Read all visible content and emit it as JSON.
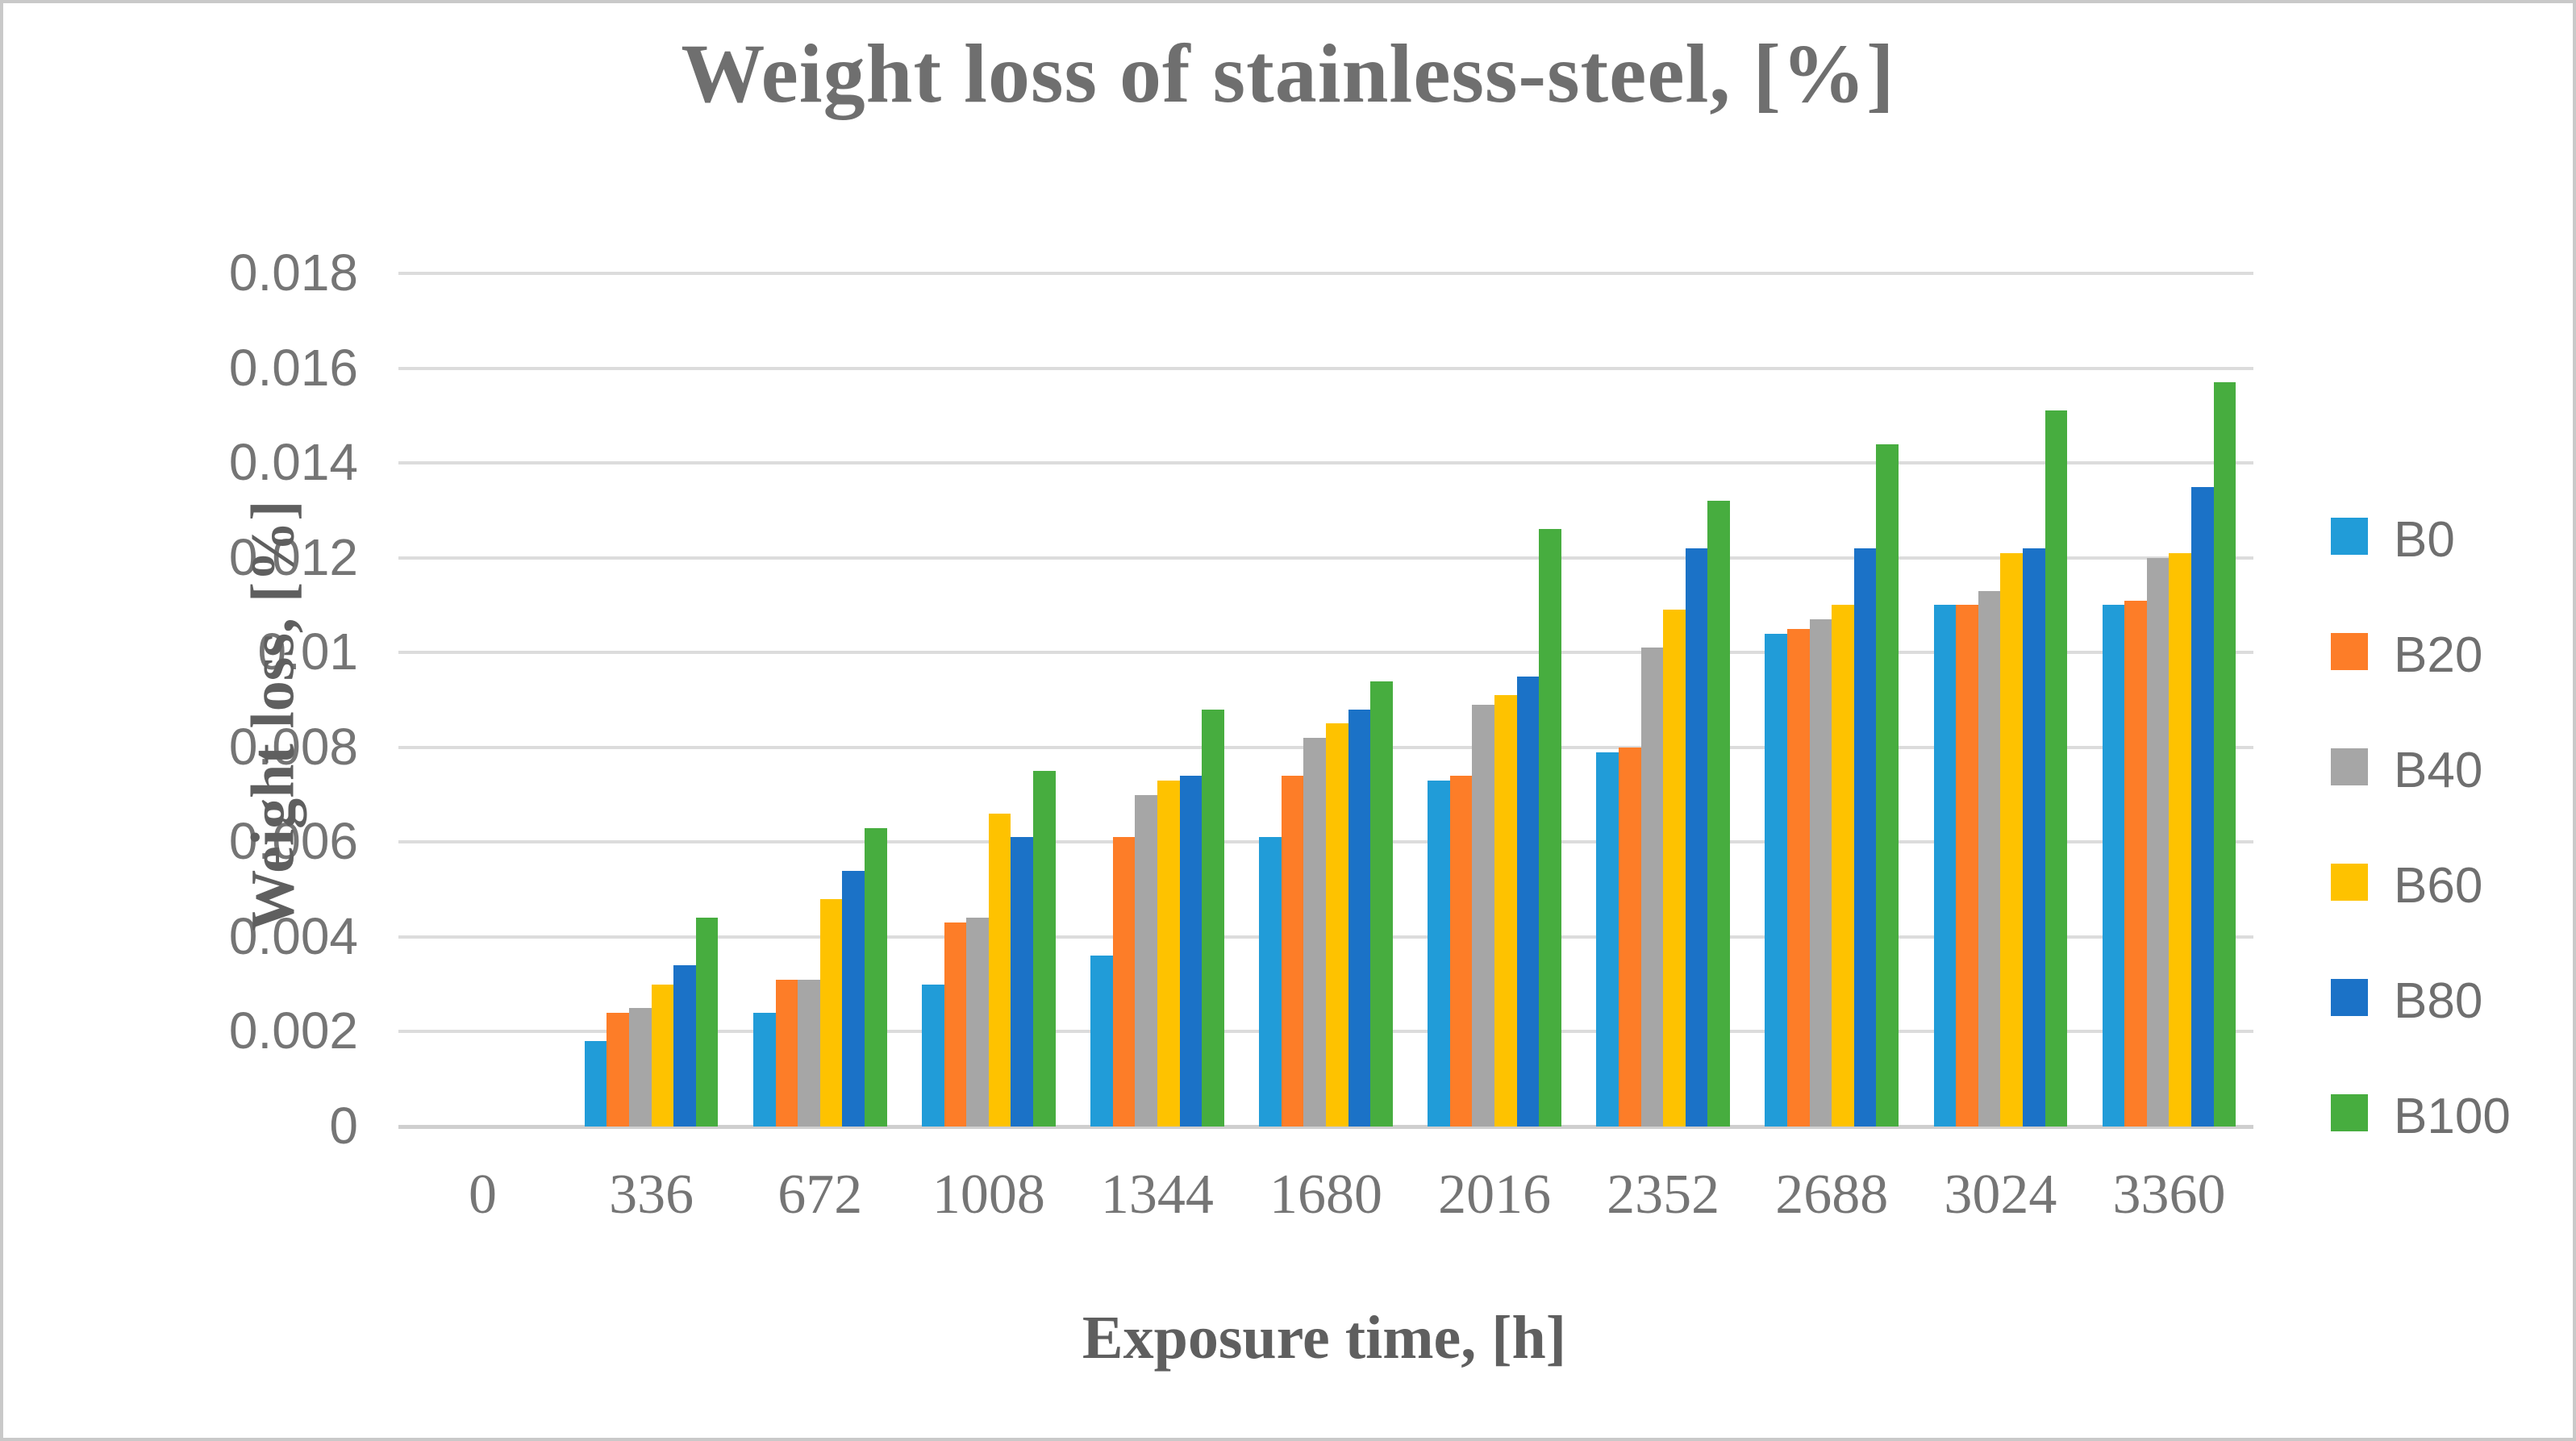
{
  "figure": {
    "title": "Weight loss of stainless-steel, [%]"
  },
  "chart_data": {
    "type": "bar",
    "title": "Weight loss of stainless-steel, [%]",
    "xlabel": "Exposure time, [h]",
    "ylabel": "Weight loss, [%]",
    "categories": [
      "0",
      "336",
      "672",
      "1008",
      "1344",
      "1680",
      "2016",
      "2352",
      "2688",
      "3024",
      "3360"
    ],
    "series": [
      {
        "name": "B0",
        "color": "#219cd8",
        "values": [
          0,
          0.0018,
          0.0024,
          0.003,
          0.0036,
          0.0061,
          0.0073,
          0.0079,
          0.0104,
          0.011,
          0.011
        ]
      },
      {
        "name": "B20",
        "color": "#fd7d28",
        "values": [
          0,
          0.0024,
          0.0031,
          0.0043,
          0.0061,
          0.0074,
          0.0074,
          0.008,
          0.0105,
          0.011,
          0.0111
        ]
      },
      {
        "name": "B40",
        "color": "#a6a6a6",
        "values": [
          0,
          0.0025,
          0.0031,
          0.0044,
          0.007,
          0.0082,
          0.0089,
          0.0101,
          0.0107,
          0.0113,
          0.012
        ]
      },
      {
        "name": "B60",
        "color": "#fec200",
        "values": [
          0,
          0.003,
          0.0048,
          0.0066,
          0.0073,
          0.0085,
          0.0091,
          0.0109,
          0.011,
          0.0121,
          0.0121
        ]
      },
      {
        "name": "B80",
        "color": "#1b72c7",
        "values": [
          0,
          0.0034,
          0.0054,
          0.0061,
          0.0074,
          0.0088,
          0.0095,
          0.0122,
          0.0122,
          0.0122,
          0.0135
        ]
      },
      {
        "name": "B100",
        "color": "#47ad3f",
        "values": [
          0,
          0.0044,
          0.0063,
          0.0075,
          0.0088,
          0.0094,
          0.0126,
          0.0132,
          0.0144,
          0.0151,
          0.0157
        ]
      }
    ],
    "ylim": [
      0,
      0.018
    ],
    "ytick_step": 0.002,
    "ytick_labels": [
      "0",
      "0.002",
      "0.004",
      "0.006",
      "0.008",
      "0.01",
      "0.012",
      "0.014",
      "0.016",
      "0.018"
    ],
    "grid": true,
    "legend_position": "right",
    "legend_labels": [
      "B0",
      "B20",
      "B40",
      "B60",
      "B80",
      "B100"
    ]
  },
  "colors": {
    "grid": "#dcdcdc",
    "axis_text": "#757575",
    "title_text": "#6f6f6f",
    "frame_border": "#c9c9c9"
  }
}
